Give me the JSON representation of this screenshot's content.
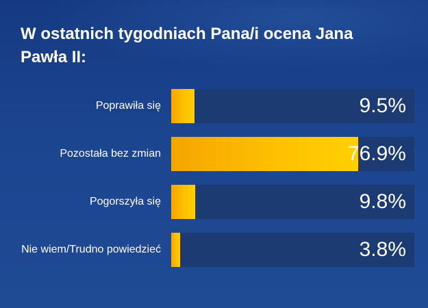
{
  "chart_data": {
    "type": "bar",
    "orientation": "horizontal",
    "title": "W ostatnich tygodniach Pana/i ocena Jana Pawła II:",
    "categories": [
      "Poprawiła się",
      "Pozostała bez zmian",
      "Pogorszyła się",
      "Nie wiem/Trudno powiedzieć"
    ],
    "values": [
      9.5,
      76.9,
      9.8,
      3.8
    ],
    "value_labels": [
      "9.5%",
      "76.9%",
      "9.8%",
      "3.8%"
    ],
    "xlim": [
      0,
      100
    ],
    "xlabel": "",
    "ylabel": "",
    "colors": {
      "bar": "#ffc000",
      "track": "#1d3b73",
      "background": "#1c4590",
      "text": "#ffffff"
    }
  }
}
